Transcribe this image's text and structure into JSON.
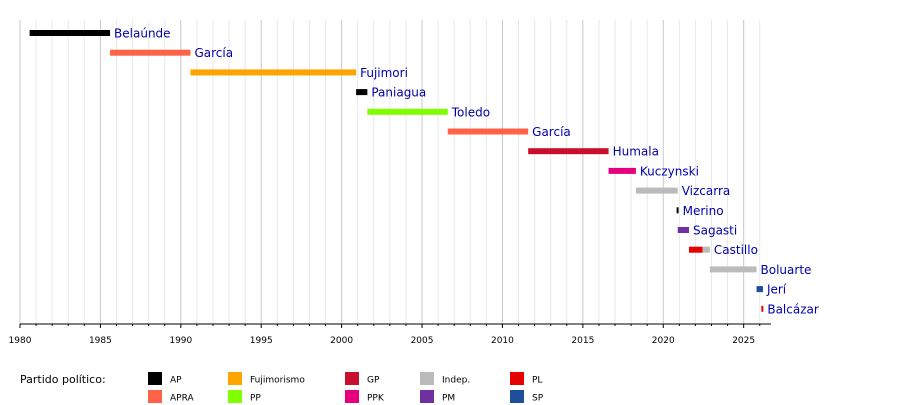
{
  "chart_data": {
    "type": "timeline",
    "xlim": [
      1980,
      2026.7
    ],
    "x_ticks": [
      1980,
      1985,
      1990,
      1995,
      2000,
      2005,
      2010,
      2015,
      2020,
      2025
    ],
    "grid": "vertical-minor-yearly",
    "legend": {
      "title": "Partido político:",
      "placement": "bottom",
      "items": [
        {
          "code": "AP",
          "color": "#000000"
        },
        {
          "code": "APRA",
          "color": "#ff6347"
        },
        {
          "code": "Fujimorismo",
          "color": "#ffa500"
        },
        {
          "code": "PP",
          "color": "#7fff00"
        },
        {
          "code": "GP",
          "color": "#c8102e"
        },
        {
          "code": "PPK",
          "color": "#e6007e"
        },
        {
          "code": "Indep.",
          "color": "#bbbbbb"
        },
        {
          "code": "PM",
          "color": "#7030a0"
        },
        {
          "code": "PL",
          "color": "#e60000"
        },
        {
          "code": "SP",
          "color": "#1f4e9a"
        }
      ]
    },
    "presidents": [
      {
        "name": "Belaúnde",
        "segments": [
          {
            "start": 1980.6,
            "end": 1985.6,
            "party": "AP"
          }
        ]
      },
      {
        "name": "García",
        "segments": [
          {
            "start": 1985.6,
            "end": 1990.6,
            "party": "APRA"
          }
        ]
      },
      {
        "name": "Fujimori",
        "segments": [
          {
            "start": 1990.6,
            "end": 2000.9,
            "party": "Fujimorismo"
          }
        ]
      },
      {
        "name": "Paniagua",
        "segments": [
          {
            "start": 2000.9,
            "end": 2001.6,
            "party": "AP"
          }
        ]
      },
      {
        "name": "Toledo",
        "segments": [
          {
            "start": 2001.6,
            "end": 2006.6,
            "party": "PP"
          }
        ]
      },
      {
        "name": "García",
        "segments": [
          {
            "start": 2006.6,
            "end": 2011.6,
            "party": "APRA"
          }
        ]
      },
      {
        "name": "Humala",
        "segments": [
          {
            "start": 2011.6,
            "end": 2016.6,
            "party": "GP"
          }
        ]
      },
      {
        "name": "Kuczynski",
        "segments": [
          {
            "start": 2016.6,
            "end": 2018.3,
            "party": "PPK"
          }
        ]
      },
      {
        "name": "Vizcarra",
        "segments": [
          {
            "start": 2018.3,
            "end": 2020.9,
            "party": "Indep."
          }
        ]
      },
      {
        "name": "Merino",
        "segments": [
          {
            "start": 2020.83,
            "end": 2020.9,
            "party": "AP"
          }
        ]
      },
      {
        "name": "Sagasti",
        "segments": [
          {
            "start": 2020.9,
            "end": 2021.6,
            "party": "PM"
          }
        ]
      },
      {
        "name": "Castillo",
        "segments": [
          {
            "start": 2021.6,
            "end": 2022.45,
            "party": "PL"
          },
          {
            "start": 2022.45,
            "end": 2022.9,
            "party": "Indep."
          }
        ]
      },
      {
        "name": "Boluarte",
        "segments": [
          {
            "start": 2022.9,
            "end": 2025.8,
            "party": "Indep."
          }
        ]
      },
      {
        "name": "Jerí",
        "segments": [
          {
            "start": 2025.8,
            "end": 2026.2,
            "party": "SP"
          }
        ]
      },
      {
        "name": "Balcázar",
        "segments": [
          {
            "start": 2026.1,
            "end": 2026.2,
            "party": "PL"
          }
        ]
      }
    ]
  }
}
